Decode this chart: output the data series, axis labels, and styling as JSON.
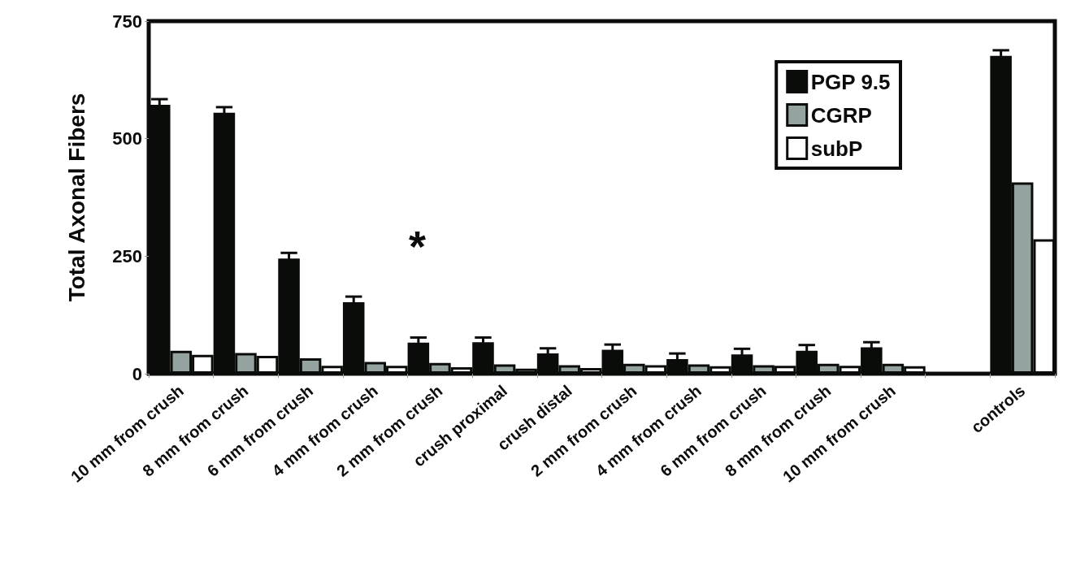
{
  "chart_data": {
    "type": "bar",
    "ylabel": "Total Axonal Fibers",
    "categories": [
      "10 mm from crush",
      "8 mm from crush",
      "6 mm from crush",
      "4 mm from crush",
      "2 mm from crush",
      "crush proximal",
      "crush distal",
      "2 mm from crush",
      "4 mm from crush",
      "6 mm from crush",
      "8 mm from crush",
      "10 mm from crush",
      null,
      "controls"
    ],
    "series": [
      {
        "name": "PGP 9.5",
        "color": "#0a0c0a",
        "values": [
          572,
          555,
          245,
          152,
          66,
          67,
          43,
          51,
          31,
          41,
          49,
          56,
          null,
          676
        ],
        "errors": [
          12,
          12,
          12,
          12,
          11,
          10,
          11,
          11,
          12,
          12,
          12,
          11,
          null,
          12
        ]
      },
      {
        "name": "CGRP",
        "color": "#95a3a0",
        "values": [
          49,
          44,
          33,
          25,
          23,
          20,
          18,
          21,
          20,
          18,
          21,
          21,
          null,
          407
        ]
      },
      {
        "name": "subP",
        "color": "#ffffff",
        "values": [
          40,
          38,
          17,
          17,
          14,
          11,
          12,
          18,
          16,
          17,
          17,
          16,
          null,
          286
        ]
      }
    ],
    "ylim": [
      0,
      750
    ],
    "yticks": [
      0,
      250,
      500,
      750
    ],
    "grid": false,
    "legend": "top right",
    "annotations": [
      "*"
    ]
  }
}
